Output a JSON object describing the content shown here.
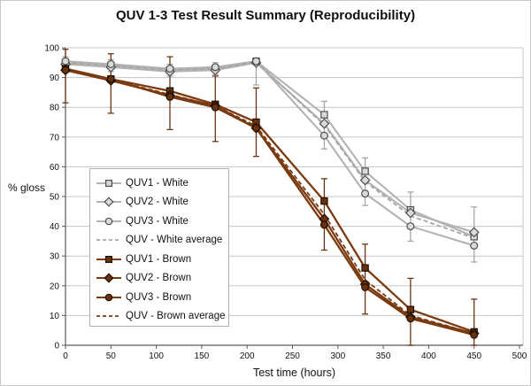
{
  "title": "QUV 1-3 Test Result Summary (Reproducibility)",
  "colors": {
    "gray_line": "#b3b3b3",
    "gray_avg_line": "#a6a6a6",
    "gray_marker_fill": "#d9d9d9",
    "gray_marker_stroke": "#4d4d4d",
    "gray_error": "#a6a6a6",
    "brown_line": "#7b3a10",
    "brown_marker_fill": "#6b3209",
    "brown_marker_stroke": "#1f1006",
    "brown_error": "#6e3410",
    "grid": "#c6c6c6",
    "axis": "#595959",
    "text": "#111111"
  },
  "chart_data": {
    "type": "line",
    "title": "QUV 1-3 Test Result Summary (Reproducibility)",
    "xlabel": "Test time (hours)",
    "ylabel": "% gloss",
    "xlim": [
      0,
      500
    ],
    "ylim": [
      0,
      100
    ],
    "x_tick_step": 50,
    "y_tick_step": 10,
    "grid": "horizontal",
    "legend_position": "middle-left",
    "x": [
      0,
      50,
      115,
      165,
      210,
      285,
      330,
      380,
      450
    ],
    "series": [
      {
        "name": "QUV1 - White",
        "marker": "square",
        "dash": "solid",
        "color": "gray",
        "values": [
          95,
          94,
          92.5,
          93,
          95.5,
          77.5,
          58.5,
          45.5,
          36.5
        ]
      },
      {
        "name": "QUV2 - White",
        "marker": "diamond",
        "dash": "solid",
        "color": "gray",
        "values": [
          94.5,
          93.5,
          92,
          92.5,
          95,
          74.5,
          55.5,
          44.5,
          38
        ]
      },
      {
        "name": "QUV3 - White",
        "marker": "circle",
        "dash": "solid",
        "color": "gray",
        "values": [
          95.5,
          94.5,
          93,
          93.5,
          95.5,
          70.5,
          51,
          40,
          33.5
        ]
      },
      {
        "name": "QUV - White average",
        "marker": "none",
        "dash": "dashed",
        "color": "gray",
        "values": [
          95,
          94,
          92.5,
          93,
          95.3,
          74,
          55,
          43.5,
          36
        ]
      },
      {
        "name": "QUV1 - Brown",
        "marker": "square",
        "dash": "solid",
        "color": "brown",
        "values": [
          93,
          89.5,
          85.5,
          81,
          75,
          48.5,
          26,
          12,
          4.5
        ]
      },
      {
        "name": "QUV2 - Brown",
        "marker": "diamond",
        "dash": "solid",
        "color": "brown",
        "values": [
          92.5,
          89,
          84,
          80.5,
          73,
          42.5,
          20.5,
          9.5,
          4
        ]
      },
      {
        "name": "QUV3 - Brown",
        "marker": "circle",
        "dash": "solid",
        "color": "brown",
        "values": [
          92.5,
          89.5,
          83.5,
          80,
          73,
          40.5,
          19.5,
          9,
          3.5
        ]
      },
      {
        "name": "QUV - Brown average",
        "marker": "none",
        "dash": "dashed",
        "color": "brown",
        "values": [
          92.7,
          89.3,
          84.3,
          80.5,
          73.7,
          44,
          22,
          10,
          4
        ]
      }
    ],
    "error_bars": [
      {
        "name": "White error bars",
        "color": "gray",
        "x": [
          0,
          50,
          115,
          165,
          210,
          285,
          330,
          380,
          450
        ],
        "top": [
          97,
          96,
          94.5,
          95,
          96.5,
          82,
          63,
          51.5,
          46.5
        ],
        "bottom": [
          92.5,
          92,
          90.5,
          91,
          87.5,
          66,
          47,
          35,
          28
        ]
      },
      {
        "name": "Brown error bars",
        "color": "brown",
        "x": [
          0,
          50,
          115,
          165,
          210,
          285,
          330,
          380,
          450
        ],
        "top": [
          99.5,
          98,
          97,
          90.5,
          86.5,
          56,
          34,
          22.5,
          15.5
        ],
        "bottom": [
          81.5,
          78,
          72.5,
          68.5,
          63.5,
          32,
          10.5,
          0,
          0
        ]
      }
    ]
  }
}
